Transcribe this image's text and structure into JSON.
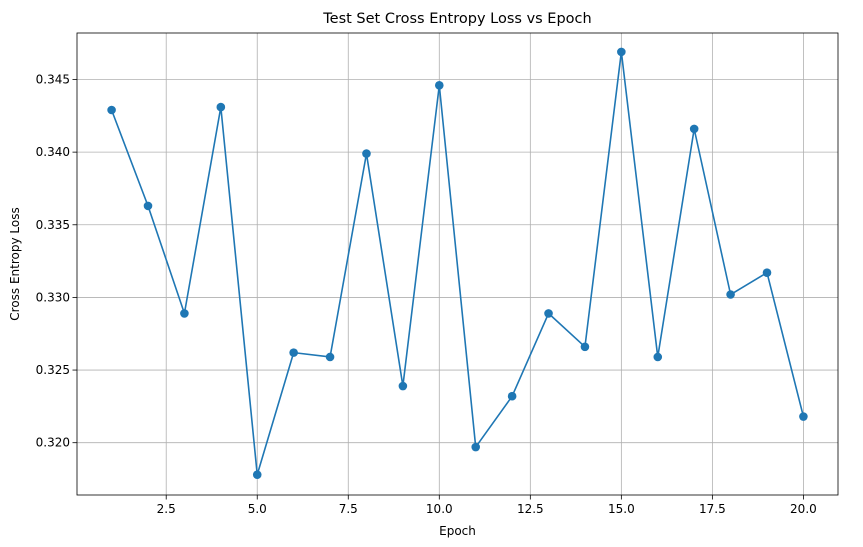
{
  "chart_data": {
    "type": "line",
    "title": "Test Set Cross Entropy Loss vs Epoch",
    "xlabel": "Epoch",
    "ylabel": "Cross Entropy Loss",
    "xlim": [
      0.05,
      20.95
    ],
    "ylim": [
      0.3164,
      0.3482
    ],
    "grid": true,
    "x_ticks": [
      2.5,
      5.0,
      7.5,
      10.0,
      12.5,
      15.0,
      17.5,
      20.0
    ],
    "x_tick_labels": [
      "2.5",
      "5.0",
      "7.5",
      "10.0",
      "12.5",
      "15.0",
      "17.5",
      "20.0"
    ],
    "y_ticks": [
      0.32,
      0.325,
      0.33,
      0.335,
      0.34,
      0.345
    ],
    "y_tick_labels": [
      "0.320",
      "0.325",
      "0.330",
      "0.335",
      "0.340",
      "0.345"
    ],
    "series": [
      {
        "color": "#1f77b4",
        "marker": "circle",
        "x": [
          1,
          2,
          3,
          4,
          5,
          6,
          7,
          8,
          9,
          10,
          11,
          12,
          13,
          14,
          15,
          16,
          17,
          18,
          19,
          20
        ],
        "y": [
          0.3429,
          0.3363,
          0.3289,
          0.3431,
          0.3178,
          0.3262,
          0.3259,
          0.3399,
          0.3239,
          0.3446,
          0.3197,
          0.3232,
          0.3289,
          0.3266,
          0.3469,
          0.3259,
          0.3416,
          0.3302,
          0.3317,
          0.3218
        ]
      }
    ]
  }
}
